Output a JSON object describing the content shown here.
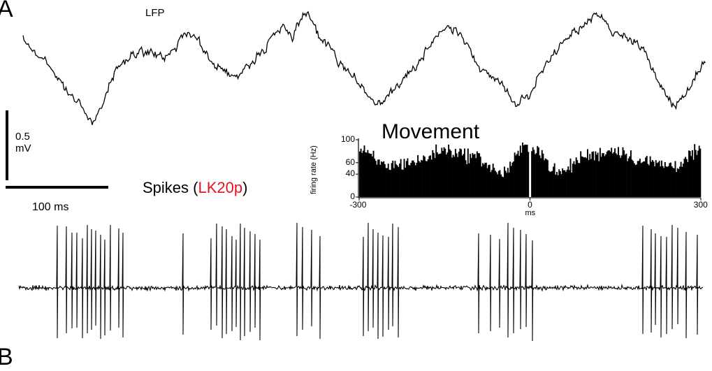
{
  "panel_labels": {
    "a": "A",
    "b": "B"
  },
  "traces": {
    "lfp_label": "LFP",
    "spikes_label": "Spikes (",
    "spikes_unit": "LK20p",
    "spikes_close": ")"
  },
  "scale_bars": {
    "vertical_value": "0.5",
    "vertical_unit": "mV",
    "horizontal_label": "100 ms"
  },
  "colors": {
    "trace": "#000000",
    "unit_name": "#e8101f"
  },
  "chart_data": {
    "type": "bar",
    "title": "Movement",
    "xlabel": "ms",
    "ylabel": "firing rate (Hz)",
    "xlim": [
      -300,
      300
    ],
    "ylim": [
      0,
      100
    ],
    "x_ticks": [
      "-300",
      "0",
      "300"
    ],
    "y_ticks": [
      "0",
      "40",
      "60",
      "100"
    ],
    "bin_width_ms": 2,
    "envelope_description": "bimodal rhythm on each side of 0",
    "series": [
      {
        "name": "",
        "x_center": [
          -300,
          -250,
          -200,
          -150,
          -100,
          -50,
          -5,
          5,
          50,
          100,
          150,
          200,
          250,
          300
        ],
        "values": [
          80,
          55,
          62,
          82,
          72,
          42,
          88,
          88,
          42,
          72,
          82,
          62,
          55,
          80
        ]
      }
    ]
  }
}
